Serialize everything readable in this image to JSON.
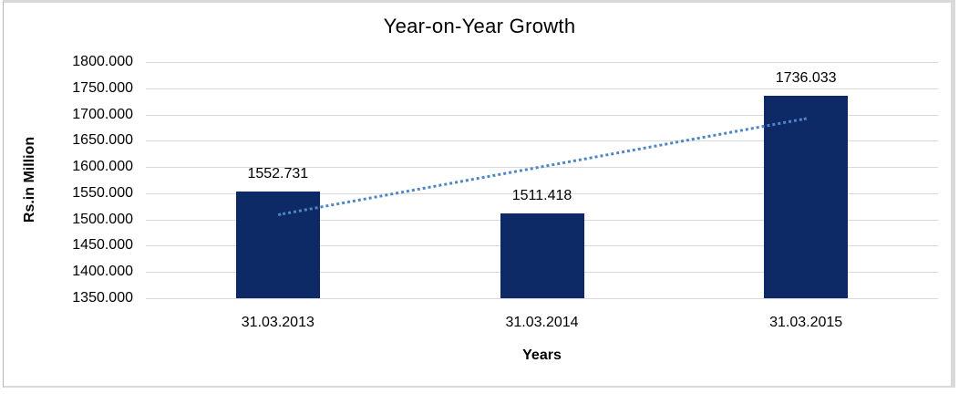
{
  "chart_data": {
    "type": "bar",
    "title": "Year-on-Year Growth",
    "xlabel": "Years",
    "ylabel": "Rs.in Million",
    "categories": [
      "31.03.2013",
      "31.03.2014",
      "31.03.2015"
    ],
    "values": [
      1552.731,
      1511.418,
      1736.033
    ],
    "value_labels": [
      "1552.731",
      "1511.418",
      "1736.033"
    ],
    "ylim": [
      1350,
      1800
    ],
    "ytick_step": 50,
    "ytick_labels": [
      "1800.000",
      "1750.000",
      "1700.000",
      "1650.000",
      "1600.000",
      "1550.000",
      "1500.000",
      "1450.000",
      "1400.000",
      "1350.000"
    ],
    "grid": true,
    "legend_position": "none",
    "bar_color": "#0d2a66",
    "gridline_color": "#d9d9d9",
    "text_color": "#000000",
    "trendline": {
      "type": "linear",
      "line_style": "dotted",
      "color": "#4f86c6"
    }
  }
}
